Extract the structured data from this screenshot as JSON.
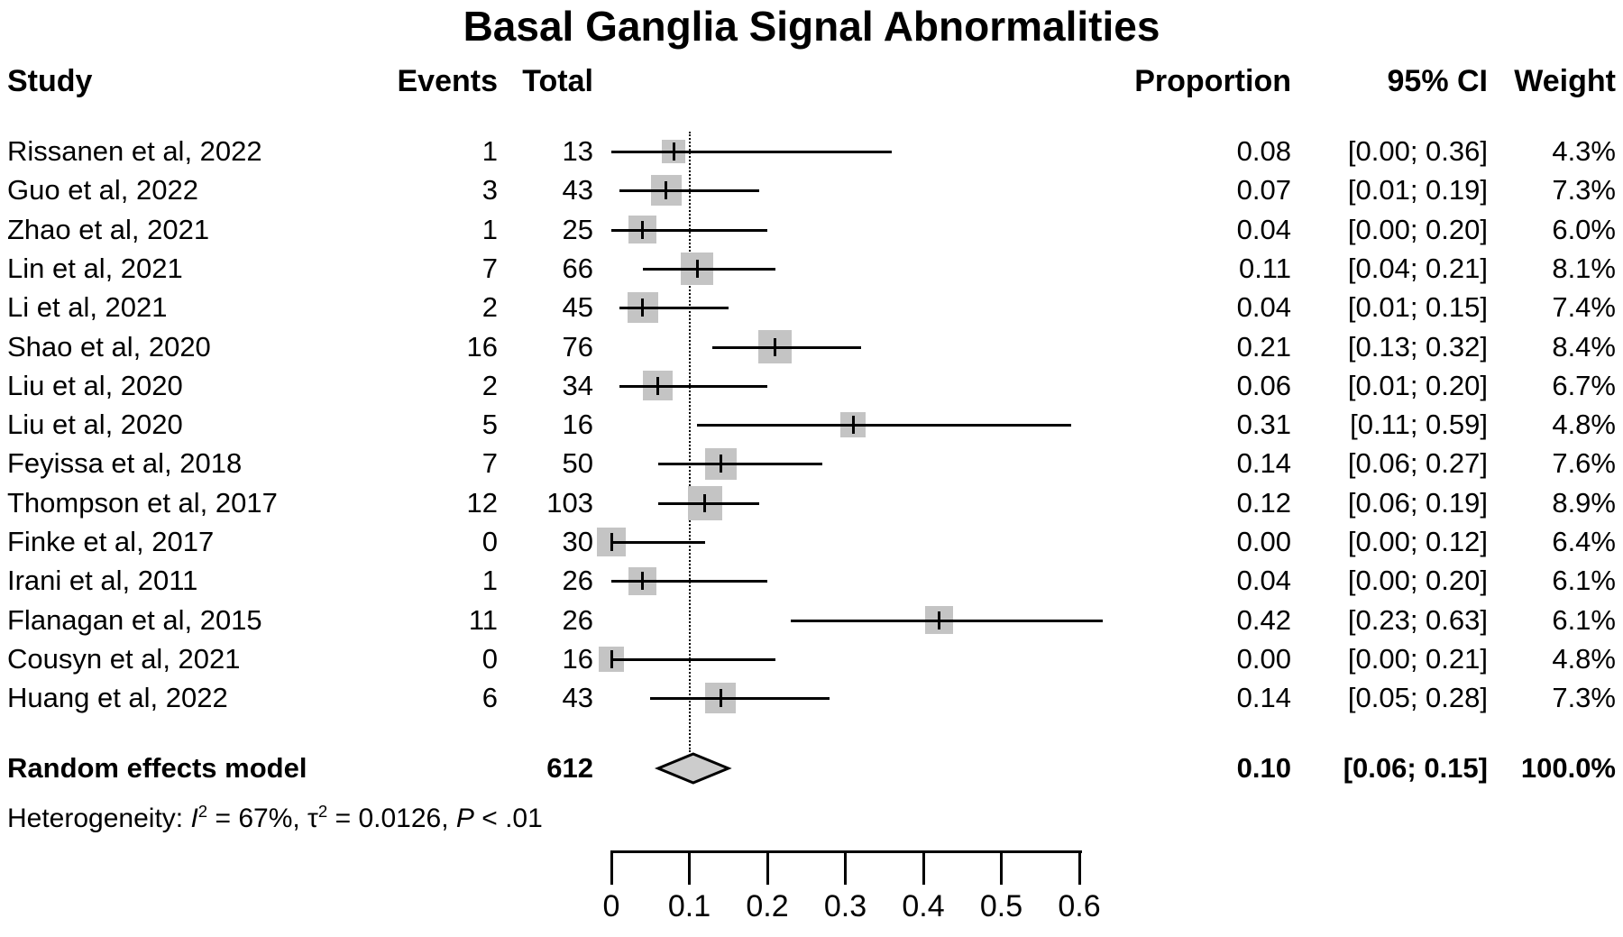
{
  "chart_data": {
    "type": "forest",
    "title": "Basal Ganglia Signal Abnormalities",
    "columns": {
      "study": "Study",
      "events": "Events",
      "total": "Total",
      "proportion": "Proportion",
      "ci": "95% CI",
      "weight": "Weight"
    },
    "studies": [
      {
        "study": "Rissanen et al, 2022",
        "events": 1,
        "total": 13,
        "proportion": 0.08,
        "ci_low": 0.0,
        "ci_high": 0.36,
        "weight_pct": 4.3
      },
      {
        "study": "Guo et al, 2022",
        "events": 3,
        "total": 43,
        "proportion": 0.07,
        "ci_low": 0.01,
        "ci_high": 0.19,
        "weight_pct": 7.3
      },
      {
        "study": "Zhao et al, 2021",
        "events": 1,
        "total": 25,
        "proportion": 0.04,
        "ci_low": 0.0,
        "ci_high": 0.2,
        "weight_pct": 6.0
      },
      {
        "study": "Lin et al, 2021",
        "events": 7,
        "total": 66,
        "proportion": 0.11,
        "ci_low": 0.04,
        "ci_high": 0.21,
        "weight_pct": 8.1
      },
      {
        "study": "Li et al, 2021",
        "events": 2,
        "total": 45,
        "proportion": 0.04,
        "ci_low": 0.01,
        "ci_high": 0.15,
        "weight_pct": 7.4
      },
      {
        "study": "Shao et al, 2020",
        "events": 16,
        "total": 76,
        "proportion": 0.21,
        "ci_low": 0.13,
        "ci_high": 0.32,
        "weight_pct": 8.4
      },
      {
        "study": "Liu et al, 2020",
        "events": 2,
        "total": 34,
        "proportion": 0.06,
        "ci_low": 0.01,
        "ci_high": 0.2,
        "weight_pct": 6.7
      },
      {
        "study": "Liu et al, 2020",
        "events": 5,
        "total": 16,
        "proportion": 0.31,
        "ci_low": 0.11,
        "ci_high": 0.59,
        "weight_pct": 4.8
      },
      {
        "study": "Feyissa et al, 2018",
        "events": 7,
        "total": 50,
        "proportion": 0.14,
        "ci_low": 0.06,
        "ci_high": 0.27,
        "weight_pct": 7.6
      },
      {
        "study": "Thompson et al, 2017",
        "events": 12,
        "total": 103,
        "proportion": 0.12,
        "ci_low": 0.06,
        "ci_high": 0.19,
        "weight_pct": 8.9
      },
      {
        "study": "Finke et al, 2017",
        "events": 0,
        "total": 30,
        "proportion": 0.0,
        "ci_low": 0.0,
        "ci_high": 0.12,
        "weight_pct": 6.4
      },
      {
        "study": "Irani et al, 2011",
        "events": 1,
        "total": 26,
        "proportion": 0.04,
        "ci_low": 0.0,
        "ci_high": 0.2,
        "weight_pct": 6.1
      },
      {
        "study": "Flanagan et al, 2015",
        "events": 11,
        "total": 26,
        "proportion": 0.42,
        "ci_low": 0.23,
        "ci_high": 0.63,
        "weight_pct": 6.1
      },
      {
        "study": "Cousyn et al, 2021",
        "events": 0,
        "total": 16,
        "proportion": 0.0,
        "ci_low": 0.0,
        "ci_high": 0.21,
        "weight_pct": 4.8
      },
      {
        "study": "Huang et al, 2022",
        "events": 6,
        "total": 43,
        "proportion": 0.14,
        "ci_low": 0.05,
        "ci_high": 0.28,
        "weight_pct": 7.3
      }
    ],
    "summary": {
      "label": "Random effects model",
      "total": 612,
      "proportion": 0.1,
      "ci_low": 0.06,
      "ci_high": 0.15,
      "weight_pct": 100.0
    },
    "heterogeneity": {
      "lead": "Heterogeneity: ",
      "i_sym": "I",
      "sup": "2",
      "seg1": " = 67%, ",
      "tau_sym": "τ",
      "seg2": " = 0.0126, ",
      "p_sym": "P",
      "seg3": " < .01"
    },
    "axis": {
      "min": 0,
      "max": 0.6,
      "ticks": [
        0,
        0.1,
        0.2,
        0.3,
        0.4,
        0.5,
        0.6
      ]
    },
    "ref_line_value": 0.1,
    "colors": {
      "square": "#c4c4c4",
      "diamond": "#cccccc",
      "line": "#000000",
      "text": "#000000"
    }
  }
}
